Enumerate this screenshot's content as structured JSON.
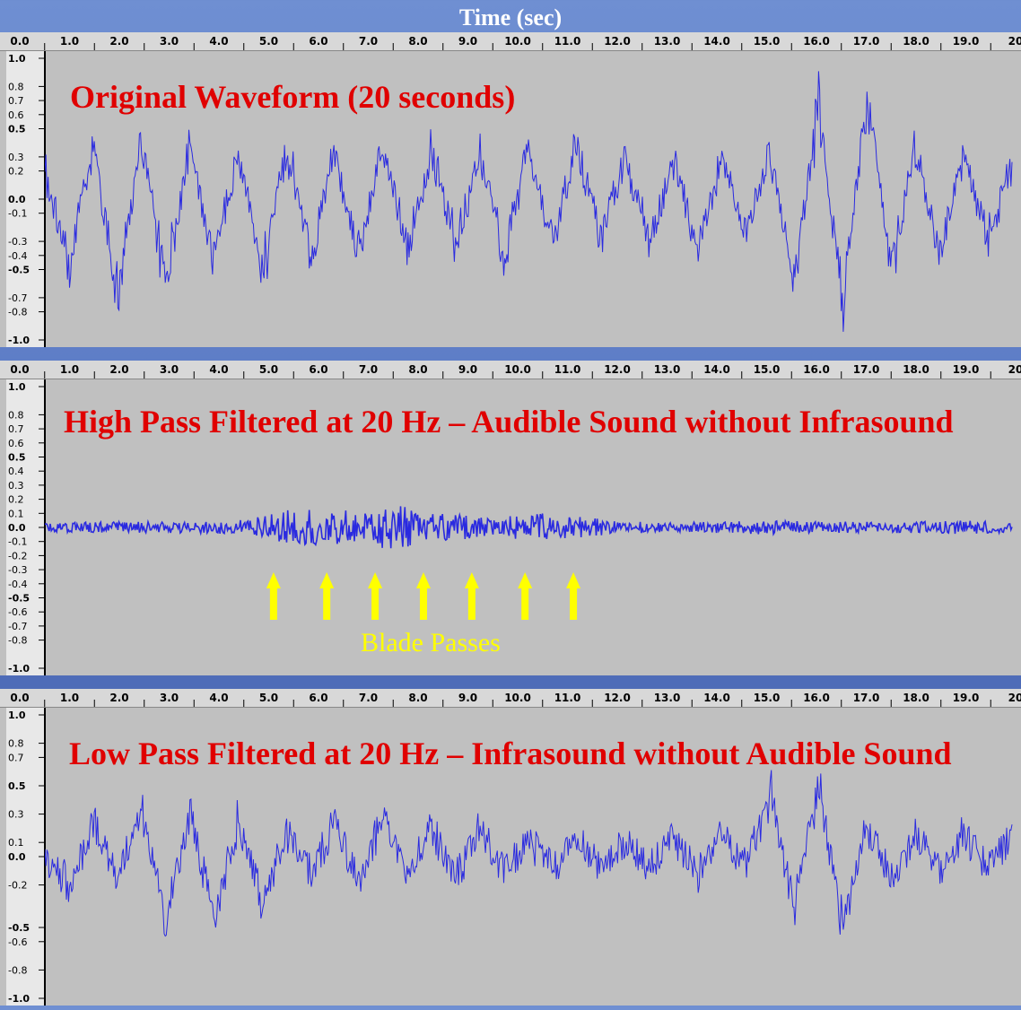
{
  "header": {
    "time_label": "Time (sec)"
  },
  "ruler_ticks": [
    "0.0",
    "1.0",
    "2.0",
    "3.0",
    "4.0",
    "5.0",
    "6.0",
    "7.0",
    "8.0",
    "9.0",
    "10.0",
    "11.0",
    "12.0",
    "13.0",
    "14.0",
    "15.0",
    "16.0",
    "17.0",
    "18.0",
    "19.0",
    "20"
  ],
  "annotation": {
    "blade_label": "Blade Passes"
  },
  "colors": {
    "wave": "#2a2ae0",
    "title": "#e00000",
    "arrow": "#ffff00",
    "background": "#5a79c4",
    "panel": "#c0c0c0"
  },
  "chart_data": [
    {
      "type": "line",
      "title": "Original Waveform (20 seconds)",
      "xlabel": "Time (sec)",
      "ylabel": "",
      "xlim": [
        0,
        20
      ],
      "ylim": [
        -1.0,
        1.0
      ],
      "ytick_labels": [
        "1.0",
        "0.8",
        "0.7",
        "0.6",
        "0.5",
        "0.3",
        "0.2",
        "0.0",
        "-0.1",
        "-0.3",
        "-0.4",
        "-0.5",
        "-0.7",
        "-0.8",
        "-1.0"
      ],
      "series": [
        {
          "x": [
            0,
            0.5,
            1,
            1.5,
            2,
            2.5,
            3,
            3.5,
            4,
            4.5,
            5,
            5.5,
            6,
            6.5,
            7,
            7.5,
            8,
            8.5,
            9,
            9.5,
            10,
            10.5,
            11,
            11.5,
            12,
            12.5,
            13,
            13.5,
            14,
            14.5,
            15,
            15.5,
            16,
            16.5,
            17,
            17.5,
            18,
            18.5,
            19,
            19.5,
            20
          ],
          "y": [
            0.25,
            -0.6,
            0.45,
            -0.85,
            0.55,
            -0.8,
            0.5,
            -0.55,
            0.45,
            -0.7,
            0.5,
            -0.5,
            0.45,
            -0.5,
            0.55,
            -0.5,
            0.5,
            -0.45,
            0.4,
            -0.55,
            0.45,
            -0.4,
            0.5,
            -0.35,
            0.4,
            -0.4,
            0.35,
            -0.45,
            0.35,
            -0.35,
            0.45,
            -0.75,
            0.85,
            -0.95,
            0.95,
            -0.7,
            0.5,
            -0.5,
            0.4,
            -0.4,
            0.3
          ]
        }
      ]
    },
    {
      "type": "line",
      "title": "High Pass Filtered at 20 Hz – Audible Sound without Infrasound",
      "xlabel": "Time (sec)",
      "ylabel": "",
      "xlim": [
        0,
        20
      ],
      "ylim": [
        -1.0,
        1.0
      ],
      "ytick_labels": [
        "1.0",
        "0.8",
        "0.7",
        "0.6",
        "0.5",
        "0.4",
        "0.3",
        "0.2",
        "0.1",
        "0.0",
        "-0.1",
        "-0.2",
        "-0.3",
        "-0.4",
        "-0.5",
        "-0.6",
        "-0.7",
        "-0.8",
        "-1.0"
      ],
      "series": [
        {
          "x": [
            0,
            1,
            2,
            3,
            4,
            5.1,
            6.2,
            7.2,
            8.2,
            9.2,
            10.3,
            11.3,
            12,
            13,
            14,
            15,
            16,
            17,
            18,
            19,
            20
          ],
          "y": [
            0.03,
            0.04,
            0.04,
            0.04,
            0.05,
            0.13,
            0.12,
            0.16,
            0.1,
            0.07,
            0.1,
            0.07,
            0.04,
            0.04,
            0.04,
            0.05,
            0.04,
            0.04,
            0.04,
            0.05,
            0.04
          ]
        }
      ],
      "blade_pass_times": [
        5.1,
        6.2,
        7.2,
        8.2,
        9.2,
        10.3,
        11.3
      ]
    },
    {
      "type": "line",
      "title": "Low Pass Filtered at 20 Hz – Infrasound without Audible Sound",
      "xlabel": "Time (sec)",
      "ylabel": "",
      "xlim": [
        0,
        20
      ],
      "ylim": [
        -1.0,
        1.0
      ],
      "ytick_labels": [
        "1.0",
        "0.8",
        "0.7",
        "0.5",
        "0.3",
        "0.1",
        "0.0",
        "-0.2",
        "-0.5",
        "-0.6",
        "-0.8",
        "-1.0"
      ],
      "series": [
        {
          "x": [
            0,
            0.5,
            1,
            1.5,
            2,
            2.5,
            3,
            3.5,
            4,
            4.5,
            5,
            5.5,
            6,
            6.5,
            7,
            7.5,
            8,
            8.5,
            9,
            9.5,
            10,
            10.5,
            11,
            11.5,
            12,
            12.5,
            13,
            13.5,
            14,
            14.5,
            15,
            15.5,
            16,
            16.5,
            17,
            17.5,
            18,
            18.5,
            19,
            19.5,
            20
          ],
          "y": [
            0.0,
            -0.3,
            0.3,
            -0.2,
            0.45,
            -0.6,
            0.4,
            -0.55,
            0.35,
            -0.45,
            0.25,
            -0.15,
            0.3,
            -0.25,
            0.4,
            -0.15,
            0.25,
            -0.2,
            0.25,
            -0.15,
            0.15,
            -0.1,
            0.15,
            -0.1,
            0.15,
            -0.1,
            0.15,
            -0.15,
            0.2,
            -0.1,
            0.6,
            -0.5,
            0.65,
            -0.62,
            0.3,
            -0.2,
            0.2,
            -0.15,
            0.2,
            -0.1,
            0.15
          ]
        }
      ]
    }
  ]
}
